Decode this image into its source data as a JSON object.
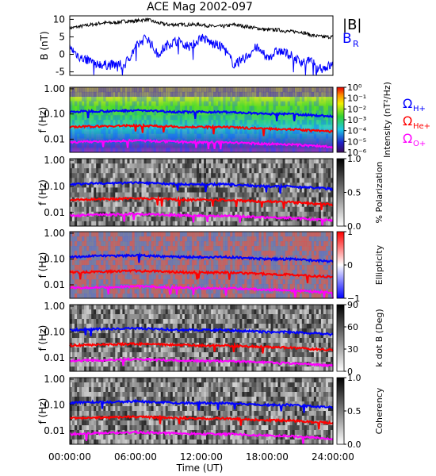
{
  "figure": {
    "title": "ACE Mag 2002-097",
    "xlabel": "Time (UT)"
  },
  "chart_data": {
    "type": "multi-panel",
    "title": "ACE Mag 2002-097",
    "x_ticks": [
      "00:00:00",
      "06:00:00",
      "12:00:00",
      "18:00:00",
      "24:00:00"
    ],
    "xlim_hours": [
      0,
      24
    ],
    "panels": [
      {
        "id": "bfield",
        "type": "line",
        "ylabel": "B (nT)",
        "ylim": [
          -6,
          11
        ],
        "yticks": [
          -5,
          0,
          5,
          10
        ],
        "series": [
          {
            "name": "|B|",
            "color": "#000000",
            "x": [
              0,
              1,
              2,
              3,
              4,
              5,
              6,
              7,
              8,
              9,
              10,
              11,
              12,
              13,
              14,
              15,
              16,
              17,
              18,
              19,
              20,
              21,
              22,
              23,
              24
            ],
            "values": [
              7.5,
              8,
              8.5,
              9,
              9,
              9.5,
              9.5,
              10,
              9,
              8.5,
              8.5,
              8.5,
              8.5,
              8,
              8,
              8.5,
              8,
              7.5,
              7,
              7,
              6.5,
              6.5,
              5.5,
              5,
              5
            ]
          },
          {
            "name": "B_R",
            "color": "#0000ff",
            "x": [
              0,
              1,
              2,
              3,
              4,
              5,
              6,
              7,
              8,
              9,
              10,
              11,
              12,
              13,
              14,
              15,
              16,
              17,
              18,
              19,
              20,
              21,
              22,
              23,
              24
            ],
            "values": [
              2,
              -1,
              -2,
              -3,
              -3,
              -3,
              2,
              5,
              0,
              3,
              4,
              2,
              5,
              3,
              2,
              -3,
              -1,
              2,
              -1,
              1,
              0,
              -2,
              -2,
              -4,
              -3
            ]
          }
        ]
      },
      {
        "id": "intensity",
        "type": "heatmap",
        "ylabel": "f (Hz)",
        "yscale": "log",
        "ylim": [
          0.003,
          1
        ],
        "yticks": [
          "0.01",
          "0.10",
          "1.00"
        ],
        "colorbar": {
          "label": "Intensity (nT²/Hz)",
          "ticks": [
            "10⁰",
            "10⁻¹",
            "10⁻²",
            "10⁻³",
            "10⁻⁴",
            "10⁻⁵",
            "10⁻⁶"
          ]
        }
      },
      {
        "id": "polarization",
        "type": "heatmap",
        "ylabel": "f (Hz)",
        "yscale": "log",
        "colorbar": {
          "label": "% Polarization",
          "ticks": [
            "1.0",
            "0.5",
            "0.0"
          ]
        }
      },
      {
        "id": "ellipticity",
        "type": "heatmap",
        "ylabel": "f (Hz)",
        "yscale": "log",
        "colorbar": {
          "label": "Ellipticity",
          "ticks": [
            "1",
            "0",
            "−1"
          ]
        }
      },
      {
        "id": "kdotb",
        "type": "heatmap",
        "ylabel": "f (Hz)",
        "yscale": "log",
        "colorbar": {
          "label": "k dot B (Deg)",
          "ticks": [
            "90",
            "60",
            "30",
            "0"
          ]
        }
      },
      {
        "id": "coherency",
        "type": "heatmap",
        "ylabel": "f (Hz)",
        "yscale": "log",
        "colorbar": {
          "label": "Coherency",
          "ticks": [
            "1.0",
            "0.5",
            "0.0"
          ]
        }
      }
    ],
    "gyrofrequency_lines": [
      {
        "name": "ΩH+",
        "color": "#0000ff",
        "x": [
          0,
          2,
          4,
          6,
          8,
          10,
          12,
          14,
          16,
          18,
          20,
          22,
          24
        ],
        "values": [
          0.12,
          0.13,
          0.13,
          0.14,
          0.13,
          0.12,
          0.12,
          0.12,
          0.11,
          0.1,
          0.1,
          0.09,
          0.08
        ]
      },
      {
        "name": "ΩHe+",
        "color": "#ff0000",
        "x": [
          0,
          2,
          4,
          6,
          8,
          10,
          12,
          14,
          16,
          18,
          20,
          22,
          24
        ],
        "values": [
          0.03,
          0.032,
          0.033,
          0.035,
          0.033,
          0.031,
          0.03,
          0.03,
          0.028,
          0.026,
          0.025,
          0.022,
          0.02
        ]
      },
      {
        "name": "ΩO+",
        "color": "#ff00ff",
        "x": [
          0,
          2,
          4,
          6,
          8,
          10,
          12,
          14,
          16,
          18,
          20,
          22,
          24
        ],
        "values": [
          0.0075,
          0.008,
          0.0082,
          0.0088,
          0.0083,
          0.0078,
          0.0075,
          0.0075,
          0.007,
          0.0065,
          0.0062,
          0.0055,
          0.005
        ]
      }
    ]
  },
  "legend": {
    "bmag": "|B|",
    "br": "B",
    "br_sub": "R",
    "ion_symbol": "Ω",
    "ions": [
      "H+",
      "He+",
      "O+"
    ]
  }
}
